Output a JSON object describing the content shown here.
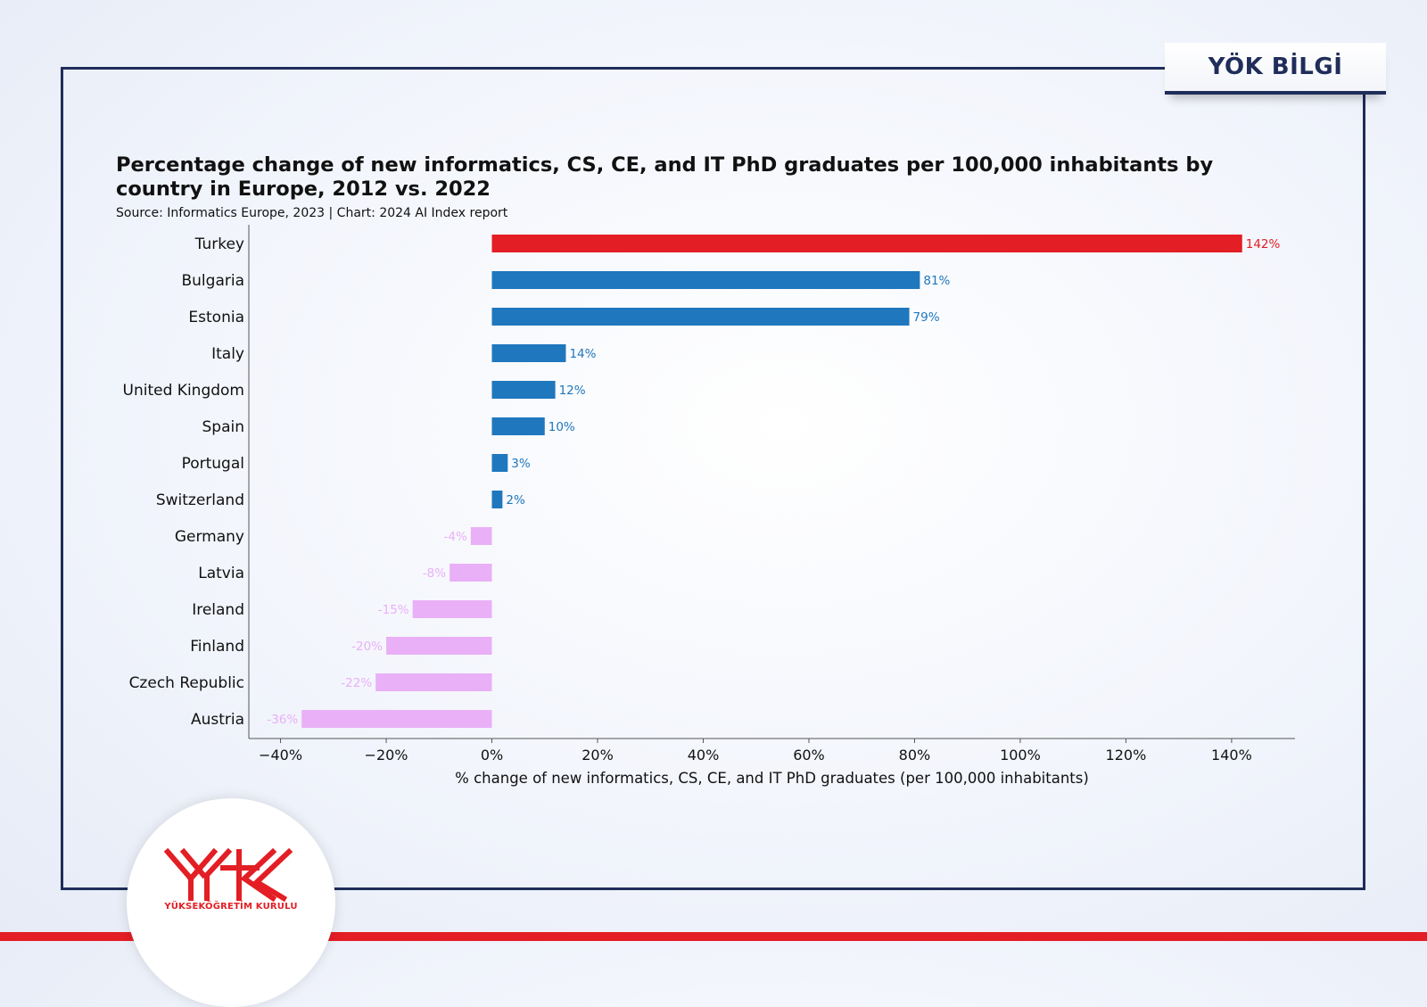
{
  "badge": {
    "label": "YÖK BİLGİ"
  },
  "chart_data": {
    "type": "bar",
    "orientation": "horizontal",
    "title": "Percentage change of new informatics, CS, CE, and IT PhD graduates per 100,000 inhabitants by country in Europe, 2012 vs. 2022",
    "subtitle": "Source: Informatics Europe, 2023 | Chart: 2024 AI Index report",
    "xlabel": "% change of new informatics, CS, CE, and IT PhD graduates (per 100,000 inhabitants)",
    "ylabel": "",
    "xlim": [
      -46,
      152
    ],
    "ticks": [
      -40,
      -20,
      0,
      20,
      40,
      60,
      80,
      100,
      120,
      140
    ],
    "tick_labels": [
      "−40%",
      "−20%",
      "0%",
      "20%",
      "40%",
      "60%",
      "80%",
      "100%",
      "120%",
      "140%"
    ],
    "categories": [
      "Turkey",
      "Bulgaria",
      "Estonia",
      "Italy",
      "United Kingdom",
      "Spain",
      "Portugal",
      "Switzerland",
      "Germany",
      "Latvia",
      "Ireland",
      "Finland",
      "Czech Republic",
      "Austria"
    ],
    "values": [
      142,
      81,
      79,
      14,
      12,
      10,
      3,
      2,
      -4,
      -8,
      -15,
      -20,
      -22,
      -36
    ],
    "value_labels": [
      "142%",
      "81%",
      "79%",
      "14%",
      "12%",
      "10%",
      "3%",
      "2%",
      "-4%",
      "-8%",
      "-15%",
      "-20%",
      "-22%",
      "-36%"
    ],
    "grid": false,
    "colors": {
      "highlight": "#e31e24",
      "positive": "#1f77bd",
      "negative": "#e9b0f7"
    }
  },
  "logo": {
    "text": "YÜKSEKÖĞRETİM KURULU",
    "icon": "yok-logo-icon"
  }
}
